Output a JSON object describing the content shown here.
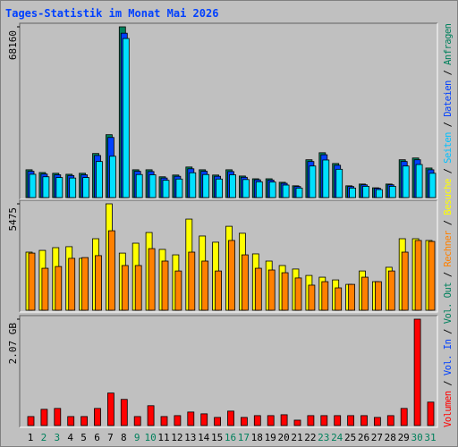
{
  "title": "Tages-Statistik im Monat Mai 2026",
  "categories": [
    "1",
    "2",
    "3",
    "4",
    "5",
    "6",
    "7",
    "8",
    "9",
    "10",
    "11",
    "12",
    "13",
    "14",
    "15",
    "16",
    "17",
    "18",
    "19",
    "20",
    "21",
    "22",
    "23",
    "24",
    "25",
    "26",
    "27",
    "28",
    "29",
    "30",
    "31"
  ],
  "category_colors": [
    "#000000",
    "#00805c",
    "#00805c",
    "#000000",
    "#000000",
    "#000000",
    "#000000",
    "#000000",
    "#00805c",
    "#00805c",
    "#000000",
    "#000000",
    "#000000",
    "#000000",
    "#000000",
    "#00805c",
    "#00805c",
    "#000000",
    "#000000",
    "#000000",
    "#000000",
    "#000000",
    "#00805c",
    "#00805c",
    "#000000",
    "#000000",
    "#000000",
    "#000000",
    "#000000",
    "#00805c",
    "#00805c"
  ],
  "legend_separator": " / ",
  "legend": [
    {
      "label": "Volumen",
      "color": "#ff0000"
    },
    {
      "label": "Vol. In",
      "color": "#0040ff"
    },
    {
      "label": "Vol. Out",
      "color": "#00805c"
    },
    {
      "label": "Rechner",
      "color": "#ff8000"
    },
    {
      "label": "Besuche",
      "color": "#ffff00"
    },
    {
      "label": "Seiten",
      "color": "#00c0ff"
    },
    {
      "label": "Dateien",
      "color": "#0040ff"
    },
    {
      "label": "Anfragen",
      "color": "#00805c"
    }
  ],
  "chart_data": [
    {
      "type": "bar",
      "ylim": [
        0,
        68160
      ],
      "yticks": [
        68160
      ],
      "series": [
        {
          "color": "#00805c",
          "values": [
            11100,
            10000,
            9700,
            9300,
            9700,
            17600,
            25100,
            68160,
            11100,
            11100,
            8300,
            9000,
            12200,
            11100,
            9000,
            11100,
            8600,
            7500,
            7500,
            6100,
            4700,
            15100,
            17900,
            13600,
            4700,
            5400,
            3900,
            5400,
            15100,
            15800,
            11800
          ]
        },
        {
          "color": "#0040ff",
          "values": [
            10500,
            9400,
            9100,
            8800,
            9100,
            16800,
            24000,
            65600,
            10500,
            10400,
            7800,
            8500,
            11500,
            10500,
            8500,
            10400,
            8100,
            7100,
            7000,
            5700,
            4400,
            14400,
            17100,
            12900,
            4400,
            5100,
            3700,
            5100,
            14400,
            15100,
            11100
          ]
        },
        {
          "color": "#00e0ff",
          "values": [
            9300,
            8300,
            8000,
            7800,
            8000,
            14400,
            16500,
            63500,
            9200,
            9100,
            6900,
            7400,
            9900,
            9200,
            7400,
            9100,
            7200,
            6300,
            6200,
            5000,
            3800,
            12600,
            15000,
            11300,
            3800,
            4500,
            3200,
            4500,
            12600,
            13200,
            9700
          ]
        }
      ]
    },
    {
      "type": "bar",
      "ylim": [
        0,
        5475
      ],
      "yticks": [
        5475
      ],
      "series": [
        {
          "color": "#ffff00",
          "values": [
            2990,
            3080,
            3220,
            3270,
            2670,
            3680,
            5475,
            2940,
            3450,
            4000,
            3130,
            2850,
            4690,
            3820,
            3500,
            4320,
            3960,
            2900,
            2530,
            2300,
            2120,
            1790,
            1700,
            1560,
            1330,
            2020,
            1470,
            2210,
            3680,
            3680,
            3590
          ]
        },
        {
          "color": "#ff8000",
          "values": [
            2940,
            2160,
            2250,
            2670,
            2710,
            2810,
            4090,
            2300,
            2300,
            3170,
            2530,
            2020,
            2990,
            2530,
            2020,
            3590,
            2850,
            2160,
            2070,
            1930,
            1660,
            1290,
            1470,
            1150,
            1330,
            1700,
            1470,
            2020,
            2990,
            3590,
            3540
          ]
        }
      ]
    },
    {
      "type": "bar",
      "ylim": [
        0,
        2.07
      ],
      "yticks": [
        {
          "value": 2.07,
          "label": "2.07 GB"
        }
      ],
      "series": [
        {
          "color": "#ff0000",
          "values": [
            0.175,
            0.316,
            0.333,
            0.175,
            0.175,
            0.333,
            0.632,
            0.509,
            0.175,
            0.386,
            0.175,
            0.193,
            0.263,
            0.228,
            0.158,
            0.281,
            0.158,
            0.193,
            0.193,
            0.21,
            0.105,
            0.193,
            0.193,
            0.193,
            0.193,
            0.193,
            0.158,
            0.193,
            0.333,
            2.07,
            0.456
          ]
        }
      ]
    }
  ]
}
